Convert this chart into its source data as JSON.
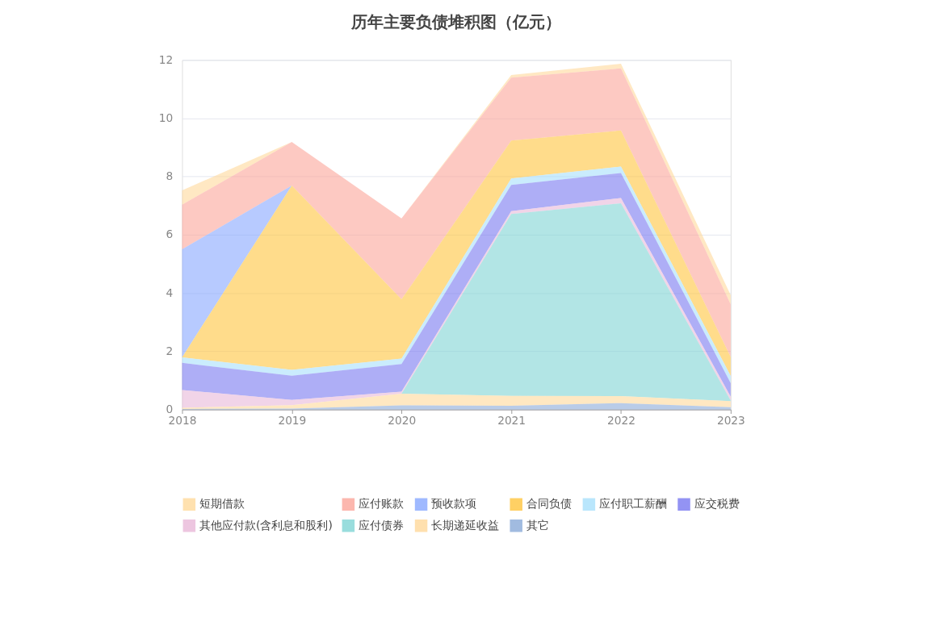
{
  "chart_data": {
    "type": "area",
    "stacked": true,
    "title": "历年主要负债堆积图（亿元）",
    "categories": [
      "2018",
      "2019",
      "2020",
      "2021",
      "2022",
      "2023"
    ],
    "series": [
      {
        "name": "短期借款",
        "color": "#ffd99b",
        "values": [
          0.49,
          0,
          0,
          0.09,
          0.16,
          0.32
        ]
      },
      {
        "name": "应付账款",
        "color": "#fba59a",
        "values": [
          1.53,
          1.49,
          2.78,
          2.16,
          2.13,
          1.81
        ]
      },
      {
        "name": "预收款项",
        "color": "#87a7ff",
        "values": [
          3.71,
          0,
          0,
          0,
          0,
          0
        ]
      },
      {
        "name": "合同负债",
        "color": "#ffc43d",
        "values": [
          0,
          6.33,
          2.03,
          1.3,
          1.24,
          0.65
        ]
      },
      {
        "name": "应付职工薪酬",
        "color": "#a7e0fb",
        "values": [
          0.19,
          0.2,
          0.19,
          0.22,
          0.22,
          0.25
        ]
      },
      {
        "name": "应交税费",
        "color": "#7878f0",
        "values": [
          0.93,
          0.83,
          0.95,
          0.9,
          0.86,
          0.46
        ]
      },
      {
        "name": "其他应付款(含利息和股利)",
        "color": "#e8b8d8",
        "values": [
          0.61,
          0.18,
          0.07,
          0.1,
          0.18,
          0.13
        ]
      },
      {
        "name": "应付债券",
        "color": "#7fd4d4",
        "values": [
          0,
          0,
          0,
          6.24,
          6.62,
          0.02
        ]
      },
      {
        "name": "长期递延收益",
        "color": "#ffd89a",
        "values": [
          0.04,
          0.12,
          0.4,
          0.34,
          0.24,
          0.21
        ]
      },
      {
        "name": "其它",
        "color": "#8aaad8",
        "values": [
          0.02,
          0.03,
          0.14,
          0.13,
          0.22,
          0.08
        ]
      }
    ],
    "ylim": [
      0,
      12
    ],
    "yticks": [
      0,
      2,
      4,
      6,
      8,
      10,
      12
    ],
    "grid": "y",
    "legend": "bottom"
  }
}
